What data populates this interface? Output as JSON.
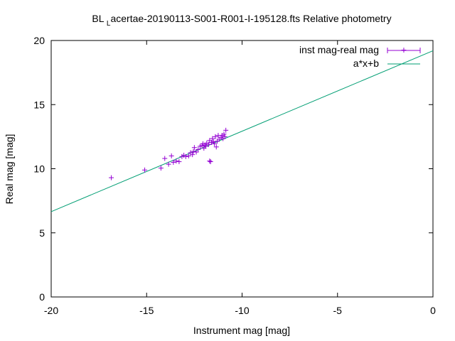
{
  "chart_data": {
    "type": "scatter",
    "title_main": "BL ",
    "title_sub": "L",
    "title_rest": "acertae-20190113-S001-R001-I-195128.fts Relative photometry",
    "xlabel": "Instrument mag [mag]",
    "ylabel": "Real mag [mag]",
    "xlim": [
      -20,
      0
    ],
    "ylim": [
      0,
      20
    ],
    "xticks": [
      -20,
      -15,
      -10,
      -5,
      0
    ],
    "yticks": [
      0,
      5,
      10,
      15,
      20
    ],
    "xtick_labels": [
      "-20",
      "-15",
      "-10",
      "-5",
      "0"
    ],
    "ytick_labels": [
      "0",
      "5",
      "10",
      "15",
      "20"
    ],
    "grid": false,
    "legend_position": "top-right",
    "colors": {
      "points": "#9400d3",
      "fit": "#009e73",
      "axes": "#000000"
    },
    "series": [
      {
        "name": "inst mag-real mag",
        "kind": "points",
        "points": [
          [
            -16.85,
            9.3
          ],
          [
            -15.1,
            9.9
          ],
          [
            -14.25,
            10.05
          ],
          [
            -14.05,
            10.8
          ],
          [
            -13.85,
            10.35
          ],
          [
            -13.7,
            11.0
          ],
          [
            -13.6,
            10.5
          ],
          [
            -13.45,
            10.6
          ],
          [
            -13.3,
            10.55
          ],
          [
            -13.15,
            10.95
          ],
          [
            -13.05,
            11.05
          ],
          [
            -12.95,
            10.95
          ],
          [
            -12.8,
            11.0
          ],
          [
            -12.7,
            11.25
          ],
          [
            -12.6,
            11.1
          ],
          [
            -12.55,
            11.35
          ],
          [
            -12.5,
            11.65
          ],
          [
            -12.4,
            11.3
          ],
          [
            -12.3,
            11.5
          ],
          [
            -12.2,
            11.75
          ],
          [
            -12.1,
            11.8
          ],
          [
            -12.05,
            11.95
          ],
          [
            -12.0,
            11.6
          ],
          [
            -11.95,
            11.85
          ],
          [
            -11.9,
            11.75
          ],
          [
            -11.85,
            12.0
          ],
          [
            -11.75,
            11.9
          ],
          [
            -11.7,
            12.2
          ],
          [
            -11.7,
            10.6
          ],
          [
            -11.65,
            10.55
          ],
          [
            -11.6,
            12.05
          ],
          [
            -11.55,
            12.35
          ],
          [
            -11.5,
            12.1
          ],
          [
            -11.45,
            11.95
          ],
          [
            -11.4,
            12.5
          ],
          [
            -11.35,
            11.7
          ],
          [
            -11.3,
            12.15
          ],
          [
            -11.25,
            12.6
          ],
          [
            -11.2,
            12.3
          ],
          [
            -11.1,
            12.45
          ],
          [
            -11.05,
            12.6
          ],
          [
            -11.0,
            12.35
          ],
          [
            -10.95,
            12.7
          ],
          [
            -10.9,
            12.5
          ],
          [
            -10.85,
            13.0
          ]
        ]
      },
      {
        "name": "a*x+b",
        "kind": "line",
        "points": [
          [
            -20,
            6.65
          ],
          [
            0,
            19.2
          ]
        ]
      }
    ]
  }
}
